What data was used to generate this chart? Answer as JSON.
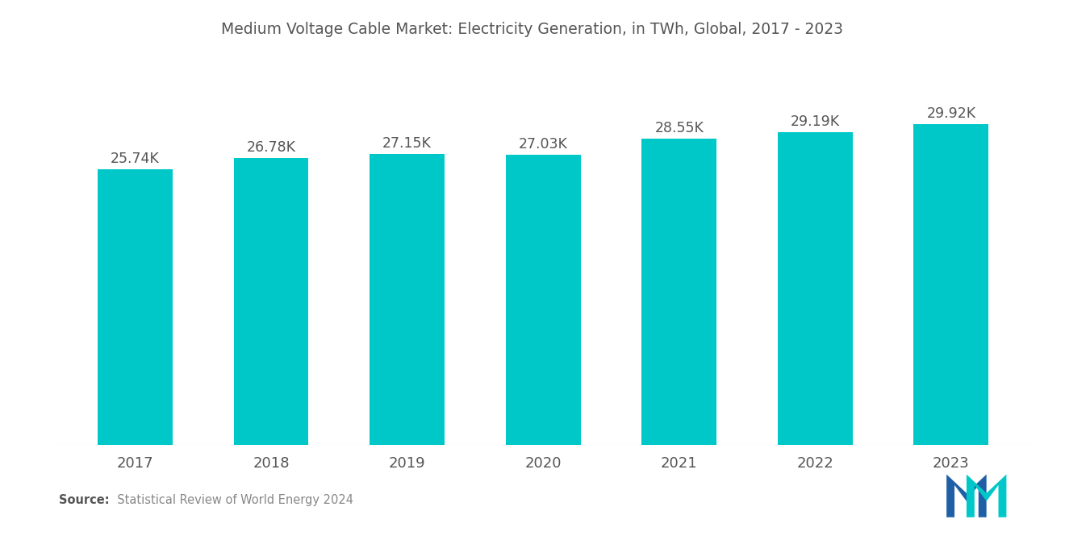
{
  "title": "Medium Voltage Cable Market: Electricity Generation, in TWh, Global, 2017 - 2023",
  "years": [
    "2017",
    "2018",
    "2019",
    "2020",
    "2021",
    "2022",
    "2023"
  ],
  "values": [
    25740,
    26780,
    27150,
    27030,
    28550,
    29190,
    29920
  ],
  "labels": [
    "25.74K",
    "26.78K",
    "27.15K",
    "27.03K",
    "28.55K",
    "29.19K",
    "29.92K"
  ],
  "bar_color": "#00C8C8",
  "background_color": "#ffffff",
  "title_color": "#555555",
  "label_color": "#555555",
  "source_bold": "Source:",
  "source_normal": "  Statistical Review of World Energy 2024",
  "ylim": [
    0,
    33500
  ],
  "bar_width": 0.55
}
